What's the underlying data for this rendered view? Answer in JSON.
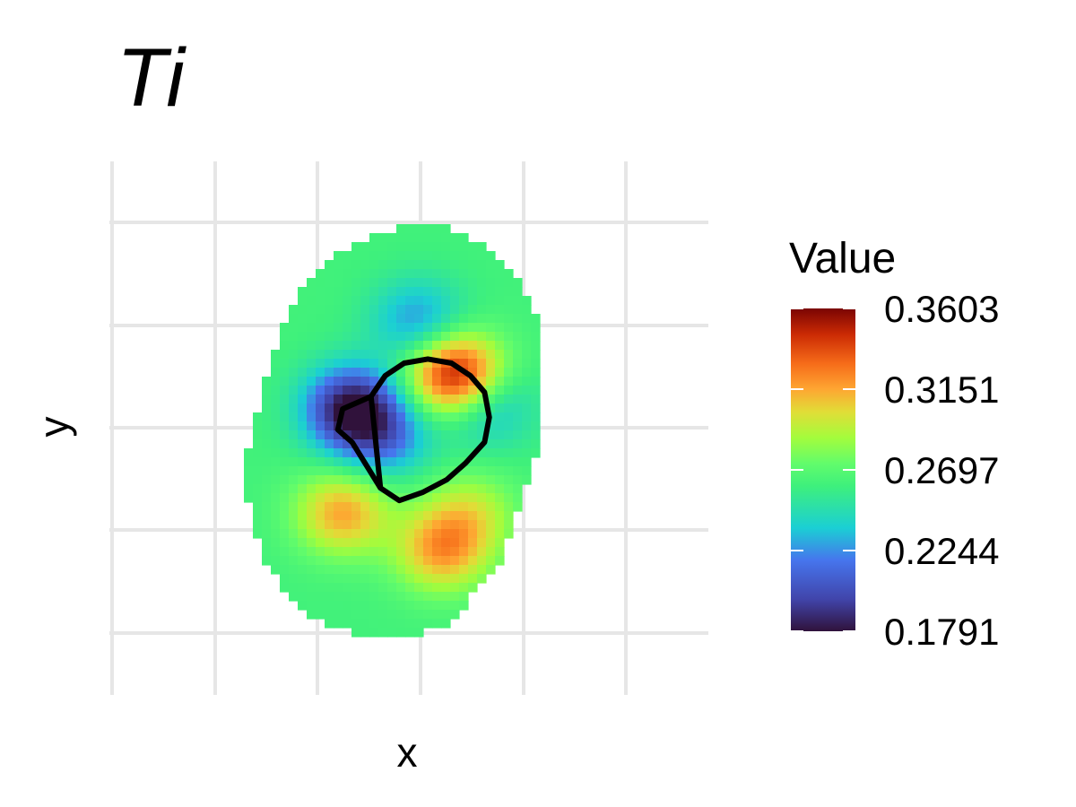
{
  "chart_data": {
    "type": "heatmap",
    "title": "Ti",
    "xlabel": "x",
    "ylabel": "y",
    "grid": true,
    "legend": {
      "title": "Value",
      "placement": "right",
      "min": 0.1791,
      "max": 0.3603,
      "ticks": [
        "0.3603",
        "0.3151",
        "0.2697",
        "0.2244",
        "0.1791"
      ],
      "colormap": "turbo"
    },
    "field": {
      "base_value": 0.262,
      "hotspots": [
        {
          "x": 0.38,
          "y": 0.55,
          "value": 0.1791
        },
        {
          "x": 0.52,
          "y": 0.76,
          "value": 0.2244
        },
        {
          "x": 0.66,
          "y": 0.56,
          "value": 0.2244
        },
        {
          "x": 0.45,
          "y": 0.48,
          "value": 0.2244
        },
        {
          "x": 0.6,
          "y": 0.63,
          "value": 0.3603
        },
        {
          "x": 0.36,
          "y": 0.3,
          "value": 0.3151
        },
        {
          "x": 0.57,
          "y": 0.21,
          "value": 0.3151
        },
        {
          "x": 0.63,
          "y": 0.3,
          "value": 0.292
        }
      ],
      "boundary": [
        [
          0.54,
          1.0
        ],
        [
          0.62,
          0.97
        ],
        [
          0.68,
          0.93
        ],
        [
          0.73,
          0.87
        ],
        [
          0.77,
          0.77
        ],
        [
          0.78,
          0.65
        ],
        [
          0.78,
          0.52
        ],
        [
          0.76,
          0.4
        ],
        [
          0.73,
          0.3
        ],
        [
          0.69,
          0.18
        ],
        [
          0.62,
          0.08
        ],
        [
          0.57,
          0.02
        ],
        [
          0.42,
          0.0
        ],
        [
          0.32,
          0.03
        ],
        [
          0.24,
          0.1
        ],
        [
          0.19,
          0.2
        ],
        [
          0.16,
          0.32
        ],
        [
          0.16,
          0.45
        ],
        [
          0.18,
          0.55
        ],
        [
          0.21,
          0.66
        ],
        [
          0.24,
          0.77
        ],
        [
          0.28,
          0.86
        ],
        [
          0.36,
          0.93
        ],
        [
          0.45,
          0.98
        ]
      ],
      "outline_main": [
        [
          0.42,
          0.58
        ],
        [
          0.45,
          0.63
        ],
        [
          0.49,
          0.66
        ],
        [
          0.54,
          0.67
        ],
        [
          0.59,
          0.66
        ],
        [
          0.63,
          0.63
        ],
        [
          0.66,
          0.59
        ],
        [
          0.67,
          0.53
        ],
        [
          0.66,
          0.47
        ],
        [
          0.62,
          0.42
        ],
        [
          0.58,
          0.38
        ],
        [
          0.53,
          0.35
        ],
        [
          0.48,
          0.33
        ],
        [
          0.44,
          0.36
        ]
      ],
      "outline_small": [
        [
          0.42,
          0.58
        ],
        [
          0.36,
          0.55
        ],
        [
          0.35,
          0.5
        ],
        [
          0.38,
          0.47
        ],
        [
          0.44,
          0.36
        ]
      ]
    }
  }
}
